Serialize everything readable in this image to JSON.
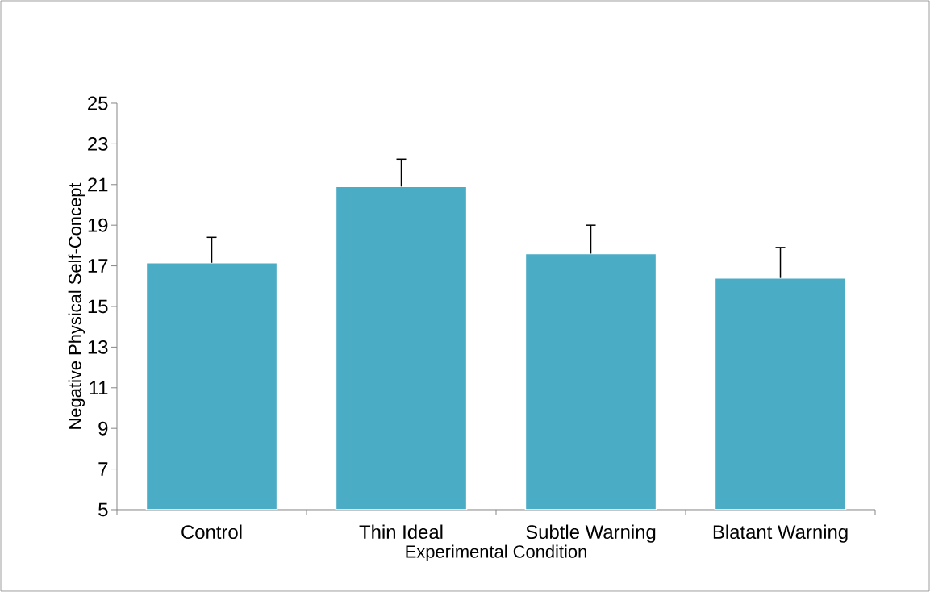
{
  "chart_data": {
    "type": "bar",
    "xlabel": "Experimental Condition",
    "ylabel": "Negative Physical Self-Concept",
    "categories": [
      "Control",
      "Thin Ideal",
      "Subtle Warning",
      "Blatant Warning"
    ],
    "values": [
      17.15,
      20.9,
      17.6,
      16.4
    ],
    "errors": [
      [
        17.15,
        18.4
      ],
      [
        20.9,
        22.25
      ],
      [
        17.6,
        19.0
      ],
      [
        16.4,
        17.9
      ]
    ],
    "color": "#4bacc6",
    "ylim": [
      5,
      25
    ],
    "yticks": [
      5,
      7,
      9,
      11,
      13,
      15,
      17,
      19,
      21,
      23,
      25
    ],
    "grid": false
  }
}
